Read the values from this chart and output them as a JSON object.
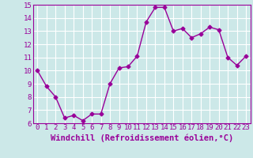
{
  "x": [
    0,
    1,
    2,
    3,
    4,
    5,
    6,
    7,
    8,
    9,
    10,
    11,
    12,
    13,
    14,
    15,
    16,
    17,
    18,
    19,
    20,
    21,
    22,
    23
  ],
  "y": [
    10.0,
    8.8,
    8.0,
    6.4,
    6.6,
    6.2,
    6.7,
    6.7,
    9.0,
    10.2,
    10.3,
    11.1,
    13.7,
    14.8,
    14.8,
    13.0,
    13.2,
    12.5,
    12.8,
    13.3,
    13.1,
    11.0,
    10.4,
    11.1
  ],
  "xlim": [
    -0.5,
    23.5
  ],
  "ylim": [
    6,
    15
  ],
  "xticks": [
    0,
    1,
    2,
    3,
    4,
    5,
    6,
    7,
    8,
    9,
    10,
    11,
    12,
    13,
    14,
    15,
    16,
    17,
    18,
    19,
    20,
    21,
    22,
    23
  ],
  "yticks": [
    6,
    7,
    8,
    9,
    10,
    11,
    12,
    13,
    14,
    15
  ],
  "xlabel": "Windchill (Refroidissement éolien,°C)",
  "line_color": "#990099",
  "marker": "D",
  "marker_size": 2.5,
  "bg_color": "#cce8e8",
  "grid_color": "#ffffff",
  "tick_label_fontsize": 6.5,
  "xlabel_fontsize": 7.5
}
